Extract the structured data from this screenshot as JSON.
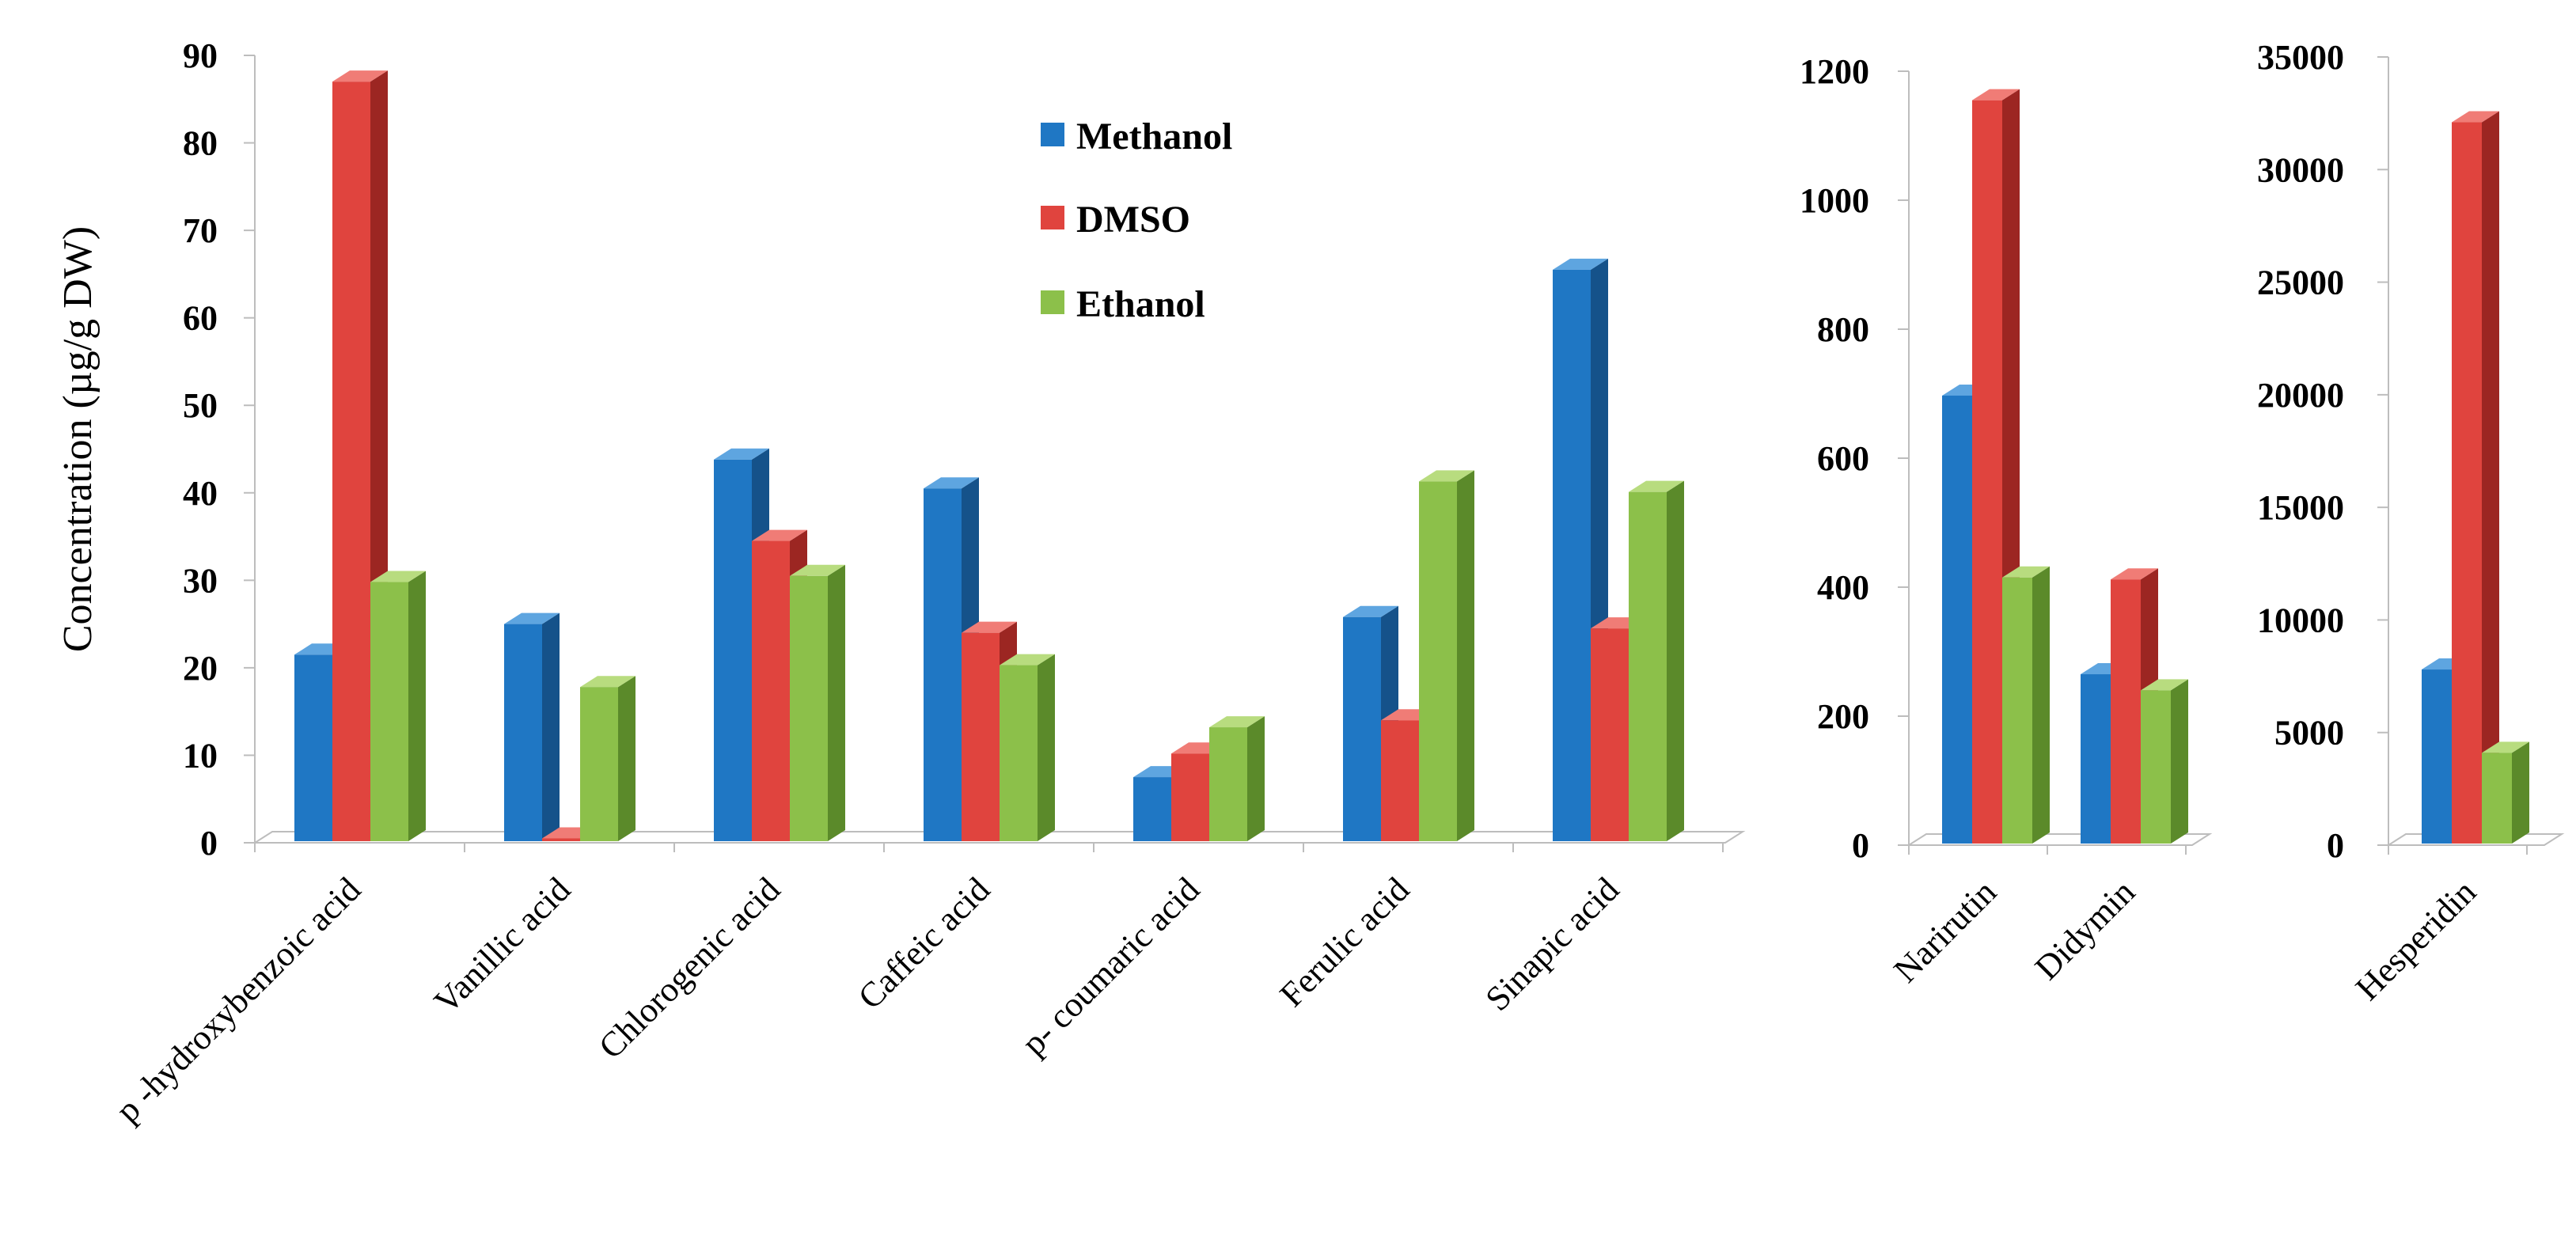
{
  "chart_data": [
    {
      "type": "bar",
      "ylabel": "Concentration (µg/g DW)",
      "ylim": [
        0,
        90
      ],
      "yticks": [
        "0",
        "10",
        "20",
        "30",
        "40",
        "50",
        "60",
        "70",
        "80",
        "90"
      ],
      "categories": [
        "p -hydroxybenzoic acid",
        "Vanillic acid",
        "Chlorogenic acid",
        "Caffeic acid",
        "p- coumaric acid",
        "Ferulic acid",
        "Sinapic acid"
      ],
      "series": [
        {
          "name": "Methanol",
          "values": [
            21.5,
            25,
            43.8,
            40.5,
            7.5,
            25.8,
            65.5
          ]
        },
        {
          "name": "DMSO",
          "values": [
            87,
            0.5,
            34.5,
            24,
            10.2,
            14,
            24.5
          ]
        },
        {
          "name": "Ethanol",
          "values": [
            29.8,
            17.8,
            30.5,
            20.3,
            13.2,
            41.3,
            40.1
          ]
        }
      ]
    },
    {
      "type": "bar",
      "ylim": [
        0,
        1200
      ],
      "yticks": [
        "0",
        "200",
        "400",
        "600",
        "800",
        "1000",
        "1200"
      ],
      "categories": [
        "Narirutin",
        "Didymin"
      ],
      "series": [
        {
          "name": "Methanol",
          "values": [
            697,
            265
          ]
        },
        {
          "name": "DMSO",
          "values": [
            1155,
            412
          ]
        },
        {
          "name": "Ethanol",
          "values": [
            415,
            240
          ]
        }
      ]
    },
    {
      "type": "bar",
      "ylim": [
        0,
        35000
      ],
      "yticks": [
        "0",
        "5000",
        "10000",
        "15000",
        "20000",
        "25000",
        "30000",
        "35000"
      ],
      "categories": [
        "Hesperidin"
      ],
      "series": [
        {
          "name": "Methanol",
          "values": [
            7800
          ]
        },
        {
          "name": "DMSO",
          "values": [
            32100
          ]
        },
        {
          "name": "Ethanol",
          "values": [
            4100
          ]
        }
      ]
    }
  ],
  "legend": {
    "items": [
      {
        "label": "Methanol",
        "color": "#1f77c4"
      },
      {
        "label": "DMSO",
        "color": "#e0443e"
      },
      {
        "label": "Ethanol",
        "color": "#8cc04a"
      }
    ]
  },
  "colors": {
    "Methanol": {
      "front": "#1f77c4",
      "side": "#15528a",
      "top": "#5ea5e0"
    },
    "DMSO": {
      "front": "#e0443e",
      "side": "#9c2622",
      "top": "#f07c76"
    },
    "Ethanol": {
      "front": "#8cc04a",
      "side": "#5b8a2a",
      "top": "#b8dc7f"
    }
  }
}
